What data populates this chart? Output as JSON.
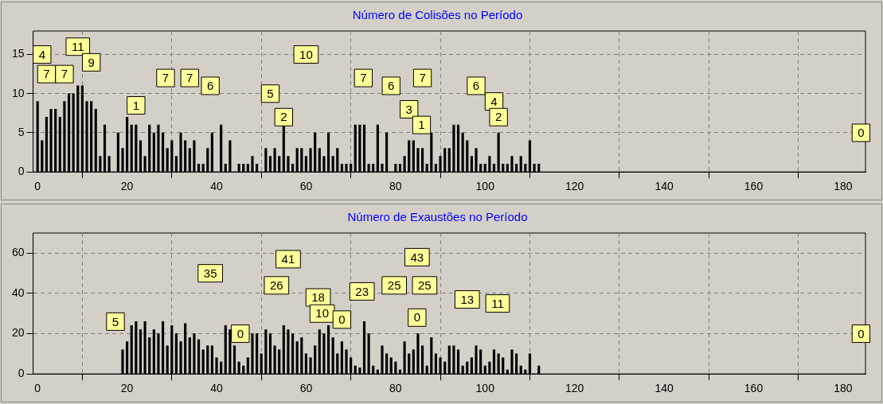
{
  "chart_data": [
    {
      "type": "bar",
      "title": "Número de Colisões no Período",
      "x": [
        0,
        1,
        2,
        3,
        4,
        5,
        6,
        7,
        8,
        9,
        10,
        11,
        12,
        13,
        14,
        15,
        16,
        17,
        18,
        19,
        20,
        21,
        22,
        23,
        24,
        25,
        26,
        27,
        28,
        29,
        30,
        31,
        32,
        33,
        34,
        35,
        36,
        37,
        38,
        39,
        40,
        41,
        42,
        43,
        44,
        45,
        46,
        47,
        48,
        49,
        50,
        51,
        52,
        53,
        54,
        55,
        56,
        57,
        58,
        59,
        60,
        61,
        62,
        63,
        64,
        65,
        66,
        67,
        68,
        69,
        70,
        71,
        72,
        73,
        74,
        75,
        76,
        77,
        78,
        79,
        80,
        81,
        82,
        83,
        84,
        85,
        86,
        87,
        88,
        89,
        90,
        91,
        92,
        93,
        94,
        95,
        96,
        97,
        98,
        99,
        100,
        101,
        102,
        103,
        104,
        105,
        106,
        107,
        108,
        109,
        110,
        111,
        112
      ],
      "values": [
        9,
        4,
        7,
        8,
        8,
        7,
        9,
        10,
        10,
        11,
        11,
        9,
        9,
        8,
        2,
        6,
        2,
        0,
        5,
        3,
        7,
        6,
        6,
        4,
        2,
        6,
        5,
        6,
        5,
        3,
        4,
        2,
        5,
        4,
        3,
        4,
        1,
        1,
        3,
        5,
        0,
        6,
        1,
        4,
        0,
        1,
        1,
        1,
        2,
        1,
        0,
        3,
        2,
        3,
        2,
        6,
        2,
        1,
        3,
        3,
        2,
        3,
        5,
        3,
        2,
        5,
        2,
        3,
        1,
        1,
        1,
        6,
        6,
        6,
        1,
        1,
        6,
        1,
        5,
        0,
        1,
        1,
        2,
        4,
        4,
        3,
        3,
        1,
        5,
        1,
        2,
        3,
        3,
        6,
        6,
        5,
        4,
        2,
        3,
        1,
        1,
        2,
        1,
        5,
        1,
        1,
        2,
        1,
        2,
        1,
        4,
        1,
        1
      ],
      "color": "#000000",
      "xlim": [
        -1,
        185
      ],
      "ylim": [
        0,
        18
      ],
      "xticks": [
        0,
        20,
        40,
        60,
        80,
        100,
        120,
        140,
        160,
        180
      ],
      "yticks": [
        0,
        5,
        10,
        15
      ],
      "grid": true,
      "annotations": [
        {
          "text": "4",
          "x": 1,
          "y": 15
        },
        {
          "text": "7",
          "x": 2,
          "y": 12.5
        },
        {
          "text": "7",
          "x": 6,
          "y": 12.5
        },
        {
          "text": "11",
          "x": 9,
          "y": 16
        },
        {
          "text": "9",
          "x": 12,
          "y": 14
        },
        {
          "text": "1",
          "x": 22,
          "y": 8.5
        },
        {
          "text": "7",
          "x": 28.6,
          "y": 12
        },
        {
          "text": "7",
          "x": 34,
          "y": 12
        },
        {
          "text": "6",
          "x": 38.6,
          "y": 11
        },
        {
          "text": "5",
          "x": 52,
          "y": 10
        },
        {
          "text": "2",
          "x": 55,
          "y": 7
        },
        {
          "text": "10",
          "x": 60,
          "y": 15
        },
        {
          "text": "7",
          "x": 72.8,
          "y": 12
        },
        {
          "text": "6",
          "x": 79,
          "y": 11
        },
        {
          "text": "3",
          "x": 83,
          "y": 8
        },
        {
          "text": "1",
          "x": 85.8,
          "y": 6
        },
        {
          "text": "7",
          "x": 86,
          "y": 12
        },
        {
          "text": "6",
          "x": 98,
          "y": 11
        },
        {
          "text": "4",
          "x": 102,
          "y": 9
        },
        {
          "text": "2",
          "x": 103,
          "y": 7
        },
        {
          "text": "0",
          "x": 184,
          "y": 5
        }
      ]
    },
    {
      "type": "bar",
      "title": "Número de Exaustões no Período",
      "x": [
        19,
        20,
        21,
        22,
        23,
        24,
        25,
        26,
        27,
        28,
        29,
        30,
        31,
        32,
        33,
        34,
        35,
        36,
        37,
        38,
        39,
        40,
        41,
        42,
        43,
        44,
        45,
        46,
        47,
        48,
        49,
        50,
        51,
        52,
        53,
        54,
        55,
        56,
        57,
        58,
        59,
        60,
        61,
        62,
        63,
        64,
        65,
        66,
        67,
        68,
        69,
        70,
        71,
        72,
        73,
        74,
        75,
        76,
        77,
        78,
        79,
        80,
        81,
        82,
        83,
        84,
        85,
        86,
        87,
        88,
        89,
        90,
        91,
        92,
        93,
        94,
        95,
        96,
        97,
        98,
        99,
        100,
        101,
        102,
        103,
        104,
        105,
        106,
        107,
        108,
        109,
        110,
        111,
        112
      ],
      "values": [
        12,
        16,
        24,
        26,
        22,
        26,
        18,
        22,
        20,
        26,
        14,
        24,
        20,
        16,
        25,
        18,
        20,
        17,
        12,
        14,
        14,
        8,
        6,
        24,
        22,
        14,
        6,
        4,
        8,
        20,
        20,
        10,
        22,
        20,
        14,
        12,
        24,
        22,
        20,
        16,
        18,
        10,
        8,
        14,
        22,
        20,
        24,
        18,
        10,
        16,
        12,
        8,
        4,
        3,
        26,
        20,
        4,
        2,
        14,
        10,
        8,
        6,
        2,
        16,
        10,
        12,
        20,
        14,
        4,
        18,
        10,
        8,
        6,
        14,
        14,
        12,
        4,
        6,
        8,
        14,
        12,
        4,
        6,
        12,
        10,
        8,
        2,
        12,
        10,
        4,
        2,
        10,
        0,
        4
      ],
      "color": "#000000",
      "xlim": [
        -1,
        185
      ],
      "ylim": [
        0,
        70
      ],
      "xticks": [
        0,
        20,
        40,
        60,
        80,
        100,
        120,
        140,
        160,
        180
      ],
      "yticks": [
        0,
        20,
        40,
        60
      ],
      "grid": true,
      "annotations": [
        {
          "text": "5",
          "x": 17.4,
          "y": 26
        },
        {
          "text": "35",
          "x": 38.6,
          "y": 50
        },
        {
          "text": "0",
          "x": 45.3,
          "y": 20
        },
        {
          "text": "26",
          "x": 53.4,
          "y": 44
        },
        {
          "text": "41",
          "x": 56,
          "y": 57
        },
        {
          "text": "18",
          "x": 62.7,
          "y": 38
        },
        {
          "text": "10",
          "x": 63.6,
          "y": 30
        },
        {
          "text": "0",
          "x": 68,
          "y": 27
        },
        {
          "text": "23",
          "x": 72.5,
          "y": 41
        },
        {
          "text": "25",
          "x": 79.7,
          "y": 44
        },
        {
          "text": "43",
          "x": 84.8,
          "y": 58
        },
        {
          "text": "0",
          "x": 84.8,
          "y": 28
        },
        {
          "text": "25",
          "x": 86.5,
          "y": 44
        },
        {
          "text": "13",
          "x": 96,
          "y": 37
        },
        {
          "text": "11",
          "x": 102.8,
          "y": 35
        },
        {
          "text": "0",
          "x": 184,
          "y": 20
        }
      ]
    }
  ]
}
